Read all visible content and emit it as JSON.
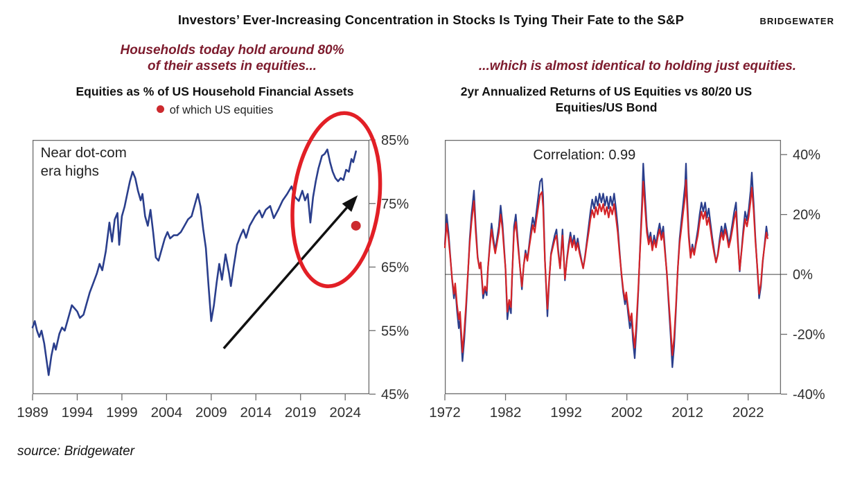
{
  "header": {
    "title": "Investors’ Ever-Increasing Concentration in Stocks Is Tying Their Fate to the S&P",
    "logo": "BRIDGEWATER"
  },
  "callouts": {
    "left_line1": "Households today hold around 80%",
    "left_line2": "of their assets in equities...",
    "right": "...which is almost identical to holding just equities."
  },
  "footer": {
    "source": "source: Bridgewater"
  },
  "colors": {
    "navy": "#2a3e8c",
    "crimson": "#d42327",
    "marker_red": "#cc2a2e",
    "ellipse_red": "#e21f26",
    "maroon": "#7d1b2d",
    "frame_gray": "#6b6b6b",
    "tick_text": "#2f2f2f"
  },
  "chart_data": [
    {
      "id": "chart-household-equities",
      "type": "line",
      "title": "Equities as % of US Household Financial Assets",
      "legend": {
        "marker_color": "#cc2a2e",
        "label": "of which US equities"
      },
      "xlim": [
        1989,
        2026.7
      ],
      "ylim": [
        45,
        85
      ],
      "grid": false,
      "x_ticks": [
        1989,
        1994,
        1999,
        2004,
        2009,
        2014,
        2019,
        2024
      ],
      "y_tick_values": [
        85,
        75,
        65,
        55,
        45
      ],
      "y_tick_labels": [
        "85%",
        "75%",
        "65%",
        "55%",
        "45%"
      ],
      "annotation_text": {
        "lines": [
          "Near dot-com",
          "era highs"
        ],
        "x": 1989.9,
        "y_lines": [
          82.3,
          79.4
        ]
      },
      "series": [
        {
          "name": "Equities as % of US household financial assets",
          "color": "#2a3e8c",
          "width": 2.6,
          "x": [
            1989,
            1989.25,
            1989.5,
            1989.75,
            1990,
            1990.3,
            1990.8,
            1991.1,
            1991.4,
            1991.6,
            1992,
            1992.3,
            1992.6,
            1993,
            1993.4,
            1993.7,
            1994,
            1994.3,
            1994.7,
            1995,
            1995.4,
            1995.8,
            1996.2,
            1996.5,
            1996.8,
            1997.2,
            1997.6,
            1997.9,
            1998.2,
            1998.5,
            1998.7,
            1999,
            1999.3,
            1999.6,
            1999.9,
            2000.2,
            2000.5,
            2000.8,
            2001.1,
            2001.3,
            2001.6,
            2001.9,
            2002.2,
            2002.5,
            2002.8,
            2003.1,
            2003.4,
            2003.8,
            2004.1,
            2004.4,
            2004.8,
            2005.2,
            2005.6,
            2006,
            2006.4,
            2006.8,
            2007.2,
            2007.5,
            2007.8,
            2008.1,
            2008.4,
            2008.7,
            2009,
            2009.3,
            2009.6,
            2009.9,
            2010.2,
            2010.6,
            2011,
            2011.2,
            2011.5,
            2011.9,
            2012.3,
            2012.6,
            2012.9,
            2013.3,
            2013.9,
            2014.4,
            2014.7,
            2015.1,
            2015.6,
            2016,
            2016.5,
            2017,
            2017.5,
            2018,
            2018.4,
            2018.8,
            2019.2,
            2019.5,
            2019.8,
            2020.1,
            2020.4,
            2020.7,
            2021,
            2021.4,
            2021.7,
            2022,
            2022.3,
            2022.6,
            2022.9,
            2023.2,
            2023.5,
            2023.8,
            2024.1,
            2024.4,
            2024.7,
            2024.9,
            2025.2
          ],
          "y": [
            55.5,
            56.5,
            55,
            54,
            55,
            53,
            48,
            51,
            53,
            52,
            54.5,
            55.5,
            55,
            57,
            59,
            58.5,
            58,
            57,
            57.5,
            59,
            61,
            62.5,
            64,
            65.5,
            64.5,
            67.5,
            72,
            69,
            72.5,
            73.5,
            68.5,
            73,
            74.5,
            76.5,
            78.5,
            80,
            79,
            77,
            75.5,
            76.5,
            73,
            71.5,
            74,
            70.5,
            66.5,
            66,
            67.5,
            69.5,
            70.5,
            69.5,
            70,
            70,
            70.5,
            71.5,
            72.5,
            73,
            75,
            76.5,
            74.5,
            71,
            68,
            62,
            56.5,
            59,
            62.5,
            65.5,
            63,
            67,
            64,
            62,
            65,
            68.5,
            70,
            70.9,
            69.6,
            71.5,
            73,
            73.9,
            72.8,
            74,
            74.6,
            72.7,
            74,
            75.5,
            76.5,
            77.7,
            76,
            75.4,
            77,
            75.5,
            76.5,
            72,
            76,
            78.5,
            80.5,
            82.5,
            82.8,
            83.5,
            81.5,
            80,
            79,
            78.5,
            79,
            78.7,
            80.3,
            80,
            82,
            81.5,
            83.2
          ]
        }
      ],
      "point_marker": {
        "label": "of which US equities",
        "x": 2025.2,
        "y": 71.5,
        "color": "#cc2a2e"
      },
      "shapes": {
        "ellipse": {
          "cx": 2023.0,
          "cy": 75.6,
          "rx_years": 4.8,
          "ry_units": 13.7,
          "rotate_deg": 7,
          "color": "#e21f26"
        },
        "arrow": {
          "x1": 2010.4,
          "y1": 52.2,
          "x2": 2025.4,
          "y2": 76.3,
          "color": "#111111"
        }
      }
    },
    {
      "id": "chart-returns",
      "type": "line",
      "title": "2yr Annualized Returns of US Equities vs 80/20 US Equities/US Bond",
      "inner_label": {
        "text": "Correlation: 0.99",
        "x": 1995.0,
        "y": 40
      },
      "xlim": [
        1972,
        2027.4
      ],
      "ylim": [
        -40,
        44.9
      ],
      "grid": false,
      "zero_line": true,
      "x_ticks": [
        1972,
        1982,
        1992,
        2002,
        2012,
        2022
      ],
      "y_tick_values": [
        40,
        20,
        0,
        -20,
        -40
      ],
      "y_tick_labels": [
        "40%",
        "20%",
        "0%",
        "-20%",
        "-40%"
      ],
      "x": [
        1972,
        1972.3,
        1972.6,
        1972.9,
        1973.2,
        1973.5,
        1973.7,
        1974,
        1974.3,
        1974.5,
        1974.9,
        1975.2,
        1975.5,
        1975.8,
        1976.1,
        1976.4,
        1976.8,
        1977.1,
        1977.4,
        1977.7,
        1977.9,
        1978.3,
        1978.6,
        1978.9,
        1979.1,
        1979.4,
        1979.7,
        1980,
        1980.3,
        1980.6,
        1980.9,
        1981.2,
        1981.5,
        1981.8,
        1982,
        1982.3,
        1982.6,
        1982.9,
        1983.1,
        1983.4,
        1983.7,
        1984,
        1984.4,
        1984.7,
        1985,
        1985.3,
        1985.6,
        1985.9,
        1986.2,
        1986.5,
        1986.8,
        1987.1,
        1987.4,
        1987.7,
        1988,
        1988.2,
        1988.5,
        1988.9,
        1989.2,
        1989.5,
        1989.8,
        1990.1,
        1990.4,
        1990.7,
        1991,
        1991.4,
        1991.8,
        1992.1,
        1992.4,
        1992.7,
        1993,
        1993.3,
        1993.6,
        1993.9,
        1994.2,
        1994.5,
        1994.8,
        1995.1,
        1995.4,
        1995.7,
        1996,
        1996.3,
        1996.6,
        1996.9,
        1997.2,
        1997.5,
        1997.8,
        1998.1,
        1998.4,
        1998.7,
        1999,
        1999.3,
        1999.6,
        1999.9,
        2000.2,
        2000.5,
        2000.8,
        2001.1,
        2001.4,
        2001.7,
        2001.9,
        2002.2,
        2002.5,
        2002.8,
        2003,
        2003.3,
        2003.6,
        2003.9,
        2004.2,
        2004.5,
        2004.7,
        2005,
        2005.3,
        2005.6,
        2005.9,
        2006.2,
        2006.5,
        2006.8,
        2007.1,
        2007.4,
        2007.7,
        2008,
        2008.3,
        2008.6,
        2008.9,
        2009.2,
        2009.5,
        2009.8,
        2010.1,
        2010.4,
        2010.7,
        2011,
        2011.3,
        2011.6,
        2011.75,
        2011.9,
        2012.2,
        2012.5,
        2012.8,
        2013.1,
        2013.4,
        2013.7,
        2014,
        2014.3,
        2014.6,
        2014.9,
        2015.2,
        2015.5,
        2015.8,
        2016.1,
        2016.4,
        2016.7,
        2017,
        2017.3,
        2017.6,
        2017.9,
        2018.2,
        2018.5,
        2018.8,
        2019.1,
        2019.4,
        2019.7,
        2020,
        2020.3,
        2020.6,
        2020.9,
        2021.2,
        2021.5,
        2021.8,
        2022.1,
        2022.4,
        2022.6,
        2022.9,
        2023.2,
        2023.5,
        2023.8,
        2024.1,
        2024.4,
        2024.7,
        2025,
        2025.2
      ],
      "series": [
        {
          "name": "US Equities",
          "color": "#2a3e8c",
          "width": 2.2,
          "y": [
            10,
            20,
            14,
            6,
            -2,
            -8,
            -4,
            -12,
            -18,
            -15,
            -29,
            -22,
            -12,
            0,
            12,
            20,
            28,
            16,
            6,
            2,
            4,
            -8,
            -5,
            -7,
            2,
            10,
            17,
            12,
            8,
            12,
            16,
            23,
            17,
            8,
            2,
            -15,
            -10,
            -13,
            0,
            16,
            20,
            12,
            2,
            -5,
            3,
            8,
            5,
            10,
            15,
            19,
            16,
            21,
            26,
            31,
            32,
            26,
            5,
            -14,
            -2,
            7,
            10,
            13,
            15,
            8,
            2,
            15,
            -2,
            5,
            10,
            14,
            10,
            13,
            9,
            12,
            8,
            5,
            2,
            6,
            11,
            16,
            21,
            25,
            22,
            26,
            23,
            27,
            24,
            27,
            23,
            26,
            22,
            26,
            23,
            27,
            22,
            16,
            8,
            0,
            -6,
            -10,
            -7,
            -13,
            -18,
            -15,
            -22,
            -28,
            -18,
            -5,
            10,
            24,
            37,
            26,
            16,
            11,
            14,
            9,
            13,
            10,
            14,
            17,
            13,
            16,
            8,
            0,
            -10,
            -20,
            -31,
            -24,
            -12,
            2,
            12,
            18,
            24,
            30,
            37,
            28,
            14,
            6,
            10,
            7,
            11,
            15,
            20,
            24,
            21,
            24,
            19,
            22,
            17,
            12,
            8,
            4,
            7,
            12,
            16,
            13,
            17,
            14,
            10,
            13,
            17,
            21,
            24,
            12,
            1,
            8,
            15,
            21,
            18,
            22,
            28,
            34,
            24,
            12,
            2,
            -8,
            -4,
            4,
            10,
            16,
            13
          ]
        },
        {
          "name": "80/20 US Equities/US Bond",
          "color": "#d42327",
          "width": 2.2,
          "y": [
            9,
            17,
            12,
            5.5,
            -1.5,
            -6.5,
            -3,
            -10,
            -15,
            -12.5,
            -26,
            -19,
            -10,
            0.5,
            10.5,
            17.5,
            24.5,
            14,
            5.5,
            2,
            4,
            -6.5,
            -4,
            -5.5,
            2,
            9,
            15,
            10.5,
            7,
            10.5,
            14,
            20,
            15,
            7,
            2,
            -12.5,
            -8.5,
            -11,
            0.5,
            14,
            17.5,
            10.5,
            2,
            -4,
            3,
            7,
            4.5,
            9,
            13,
            16.5,
            14,
            18.5,
            22.5,
            26.5,
            27.5,
            22.5,
            4.5,
            -11.5,
            -1.5,
            6.5,
            9,
            11.5,
            13,
            7,
            2,
            13,
            -1.5,
            4.5,
            9,
            12.5,
            9,
            11.5,
            8,
            10.5,
            7,
            4.5,
            2,
            5.5,
            10,
            14,
            18.5,
            21.5,
            19,
            22.5,
            20,
            23.5,
            21,
            23.5,
            20,
            22.5,
            19,
            22.5,
            20,
            23.5,
            19,
            14,
            7,
            0.5,
            -5,
            -8.5,
            -6,
            -11,
            -15.5,
            -13,
            -19,
            -24.5,
            -15.5,
            -4,
            9,
            21,
            31,
            22.5,
            14,
            10,
            12.5,
            8,
            11.5,
            9,
            12.5,
            15,
            11.5,
            14,
            7,
            0.5,
            -8.5,
            -17.5,
            -27,
            -21,
            -10.5,
            2,
            10.5,
            15.5,
            21,
            26,
            31.5,
            24.5,
            12.5,
            5.5,
            9,
            6.5,
            10,
            13,
            17.5,
            21,
            18.5,
            21,
            16.5,
            19,
            15,
            10.5,
            7,
            4,
            6.5,
            10.5,
            14,
            11.5,
            15,
            12.5,
            9,
            11.5,
            15,
            18.5,
            21,
            10.5,
            1.5,
            7.5,
            13.5,
            18.5,
            16,
            19.5,
            24.5,
            29,
            21.5,
            11,
            2.5,
            -6.5,
            -3,
            4.5,
            9.5,
            14,
            12
          ]
        }
      ]
    }
  ]
}
